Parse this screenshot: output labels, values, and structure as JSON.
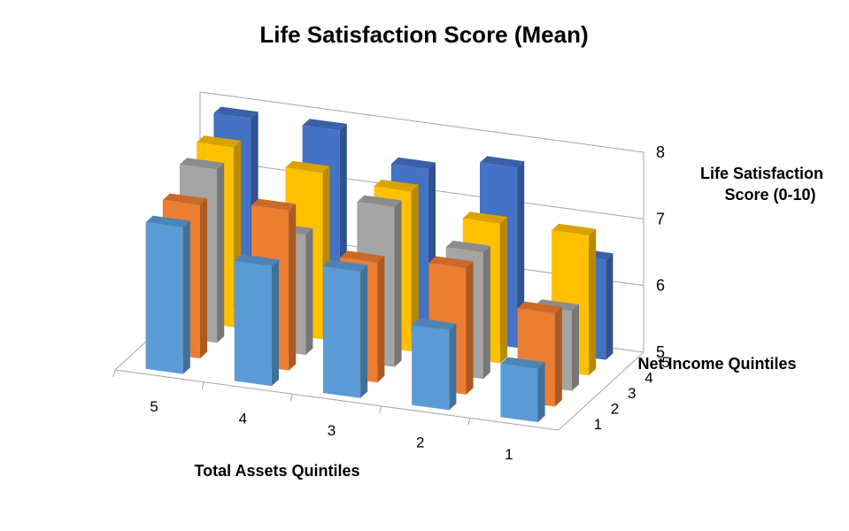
{
  "chart_data": {
    "type": "bar",
    "subtype": "3d-column",
    "title": "Life Satisfaction Score (Mean)",
    "xlabel": "Total Assets Quintiles",
    "ylabel": "Net Income Quintiles",
    "zlabel_lines": [
      "Life Satisfaction",
      "Score (0-10)"
    ],
    "x_categories": [
      "5",
      "4",
      "3",
      "2",
      "1"
    ],
    "y_categories": [
      "1",
      "2",
      "3",
      "4",
      "5"
    ],
    "zlim": [
      5,
      8
    ],
    "z_ticks": [
      "5",
      "6",
      "7",
      "8"
    ],
    "grid": true,
    "colors": {
      "1": "#5b9bd5",
      "2": "#ed7d31",
      "3": "#a5a5a5",
      "4": "#ffc000",
      "5": "#4472c4"
    },
    "series": [
      {
        "values": [
          7.2,
          6.8,
          6.9,
          6.2,
          5.8
        ]
      },
      {
        "values": [
          7.3,
          7.4,
          6.8,
          6.9,
          6.4
        ]
      },
      {
        "values": [
          7.6,
          6.8,
          7.4,
          6.9,
          6.2
        ]
      },
      {
        "values": [
          7.7,
          7.5,
          7.4,
          7.1,
          7.1
        ]
      },
      {
        "values": [
          7.9,
          7.9,
          7.5,
          7.7,
          6.5
        ]
      }
    ]
  }
}
